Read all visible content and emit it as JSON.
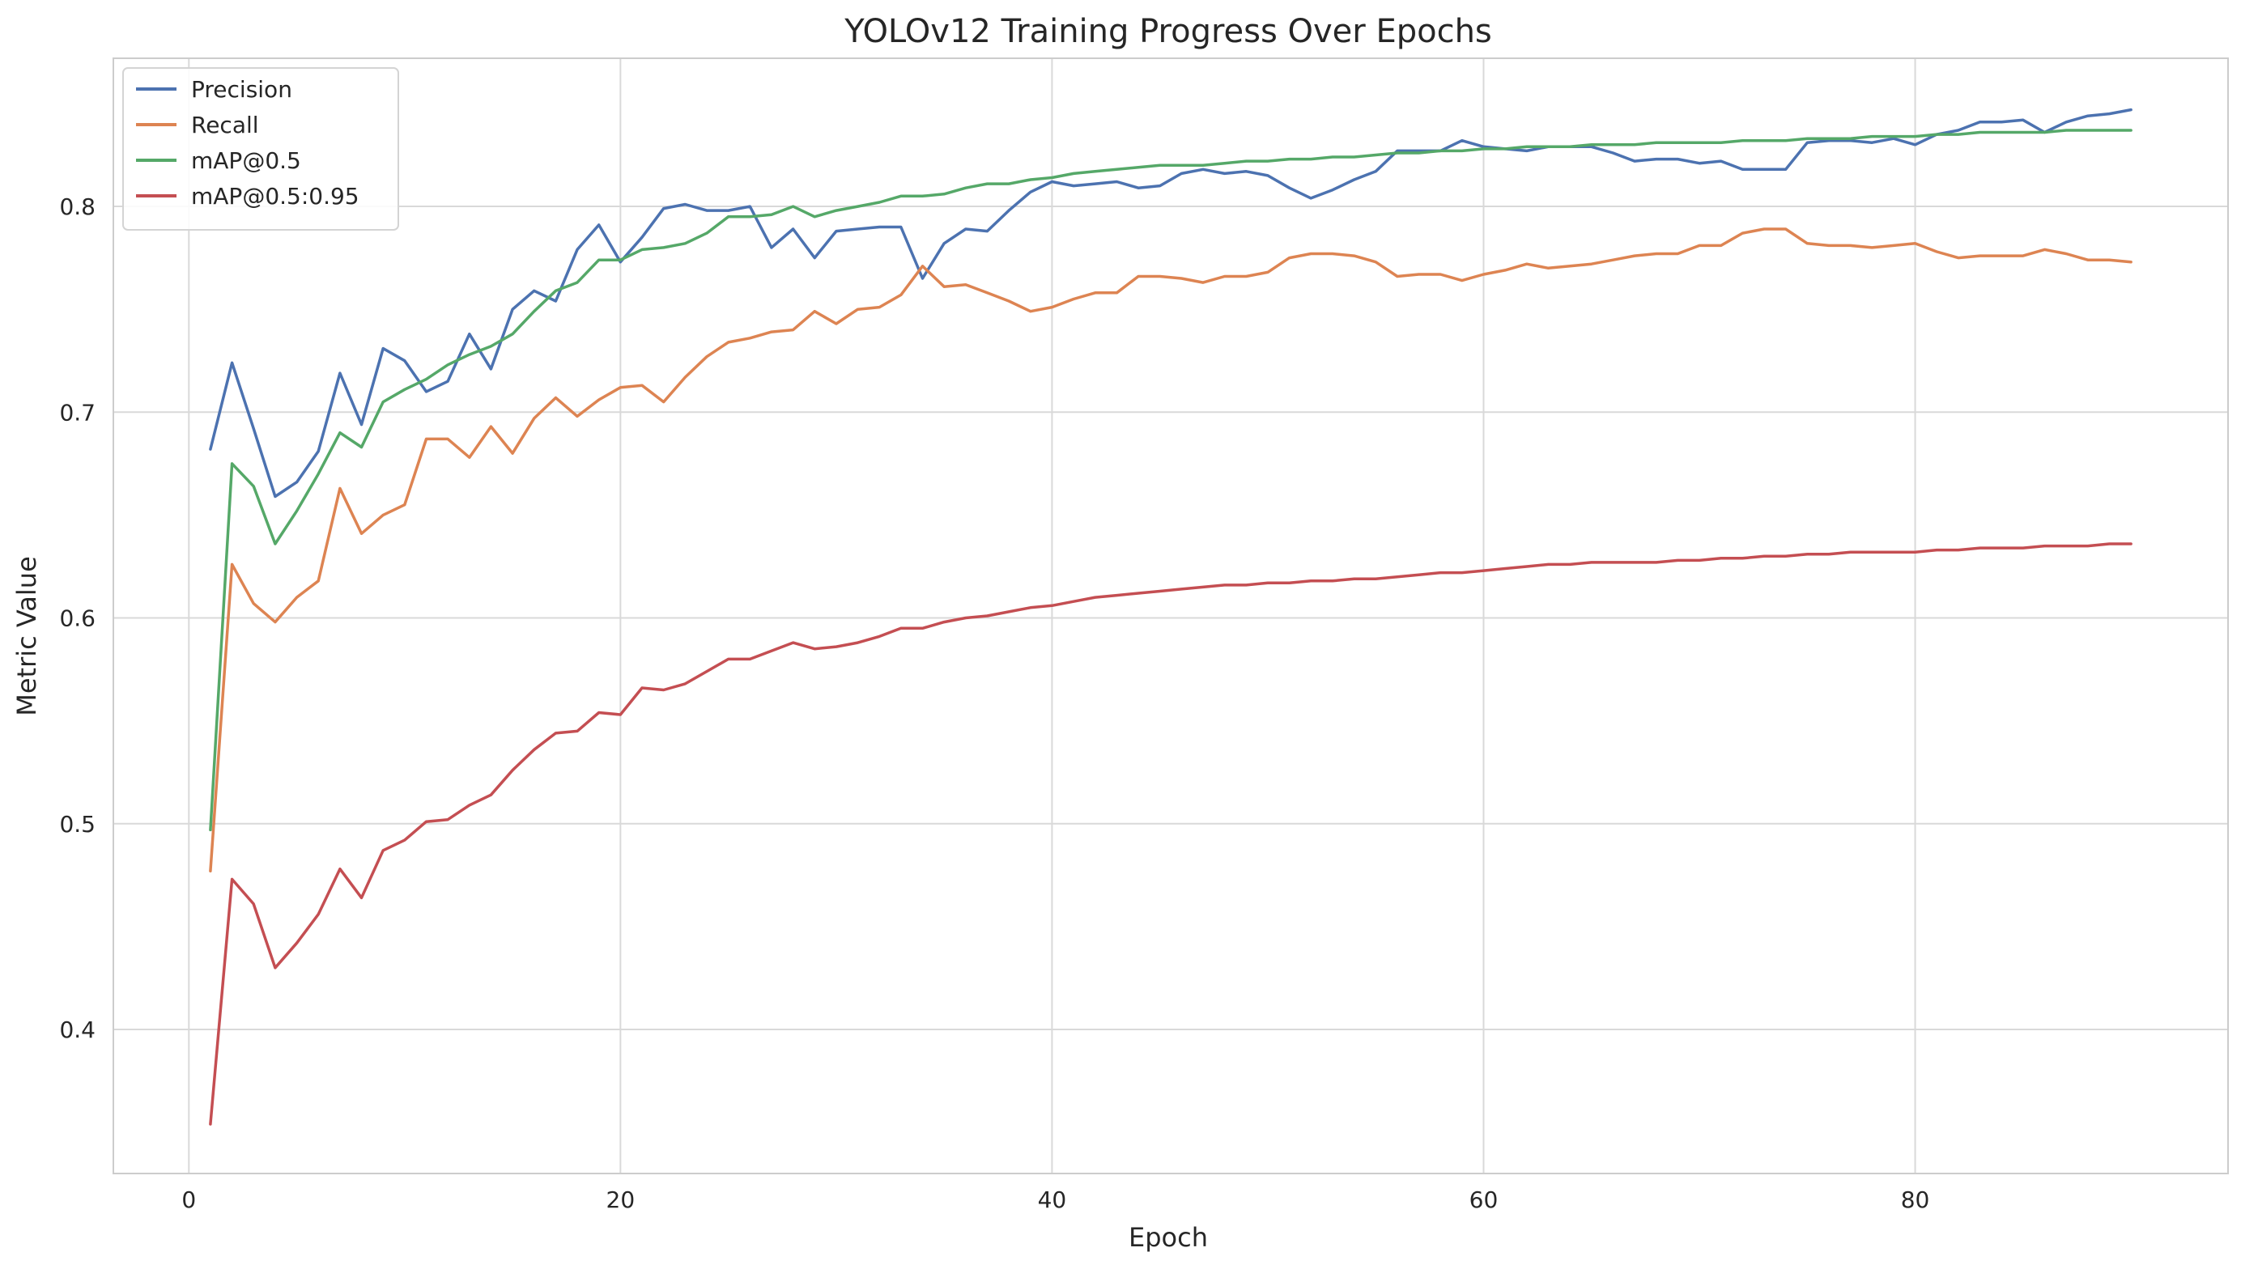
{
  "chart_data": {
    "type": "line",
    "title": "YOLOv12 Training Progress Over Epochs",
    "xlabel": "Epoch",
    "ylabel": "Metric Value",
    "xlim": [
      -3.5,
      94.5
    ],
    "ylim": [
      0.33,
      0.872
    ],
    "xticks": [
      0,
      20,
      40,
      60,
      80
    ],
    "yticks": [
      0.4,
      0.5,
      0.6,
      0.7,
      0.8
    ],
    "grid": true,
    "legend_position": "top-left",
    "x": [
      1,
      2,
      3,
      4,
      5,
      6,
      7,
      8,
      9,
      10,
      11,
      12,
      13,
      14,
      15,
      16,
      17,
      18,
      19,
      20,
      21,
      22,
      23,
      24,
      25,
      26,
      27,
      28,
      29,
      30,
      31,
      32,
      33,
      34,
      35,
      36,
      37,
      38,
      39,
      40,
      41,
      42,
      43,
      44,
      45,
      46,
      47,
      48,
      49,
      50,
      51,
      52,
      53,
      54,
      55,
      56,
      57,
      58,
      59,
      60,
      61,
      62,
      63,
      64,
      65,
      66,
      67,
      68,
      69,
      70,
      71,
      72,
      73,
      74,
      75,
      76,
      77,
      78,
      79,
      80,
      81,
      82,
      83,
      84,
      85,
      86,
      87,
      88,
      89,
      90
    ],
    "series": [
      {
        "name": "Precision",
        "color": "#4c72b0",
        "values": [
          0.682,
          0.724,
          0.692,
          0.659,
          0.666,
          0.681,
          0.719,
          0.694,
          0.731,
          0.725,
          0.71,
          0.715,
          0.738,
          0.721,
          0.75,
          0.759,
          0.754,
          0.779,
          0.791,
          0.773,
          0.785,
          0.799,
          0.801,
          0.798,
          0.798,
          0.8,
          0.78,
          0.789,
          0.775,
          0.788,
          0.789,
          0.79,
          0.79,
          0.765,
          0.782,
          0.789,
          0.788,
          0.798,
          0.807,
          0.812,
          0.81,
          0.811,
          0.812,
          0.809,
          0.81,
          0.816,
          0.818,
          0.816,
          0.817,
          0.815,
          0.809,
          0.804,
          0.808,
          0.813,
          0.817,
          0.827,
          0.827,
          0.827,
          0.832,
          0.829,
          0.828,
          0.827,
          0.829,
          0.829,
          0.829,
          0.826,
          0.822,
          0.823,
          0.823,
          0.821,
          0.822,
          0.818,
          0.818,
          0.818,
          0.831,
          0.832,
          0.832,
          0.831,
          0.833,
          0.83,
          0.835,
          0.837,
          0.841,
          0.841,
          0.842,
          0.836,
          0.841,
          0.844,
          0.845,
          0.847
        ]
      },
      {
        "name": "Recall",
        "color": "#dd8452",
        "values": [
          0.477,
          0.626,
          0.607,
          0.598,
          0.61,
          0.618,
          0.663,
          0.641,
          0.65,
          0.655,
          0.687,
          0.687,
          0.678,
          0.693,
          0.68,
          0.697,
          0.707,
          0.698,
          0.706,
          0.712,
          0.713,
          0.705,
          0.717,
          0.727,
          0.734,
          0.736,
          0.739,
          0.74,
          0.749,
          0.743,
          0.75,
          0.751,
          0.757,
          0.771,
          0.761,
          0.762,
          0.758,
          0.754,
          0.749,
          0.751,
          0.755,
          0.758,
          0.758,
          0.766,
          0.766,
          0.765,
          0.763,
          0.766,
          0.766,
          0.768,
          0.775,
          0.777,
          0.777,
          0.776,
          0.773,
          0.766,
          0.767,
          0.767,
          0.764,
          0.767,
          0.769,
          0.772,
          0.77,
          0.771,
          0.772,
          0.774,
          0.776,
          0.777,
          0.777,
          0.781,
          0.781,
          0.787,
          0.789,
          0.789,
          0.782,
          0.781,
          0.781,
          0.78,
          0.781,
          0.782,
          0.778,
          0.775,
          0.776,
          0.776,
          0.776,
          0.779,
          0.777,
          0.774,
          0.774,
          0.773
        ]
      },
      {
        "name": "mAP@0.5",
        "color": "#55a868",
        "values": [
          0.497,
          0.675,
          0.664,
          0.636,
          0.652,
          0.67,
          0.69,
          0.683,
          0.705,
          0.711,
          0.716,
          0.723,
          0.728,
          0.732,
          0.738,
          0.749,
          0.759,
          0.763,
          0.774,
          0.774,
          0.779,
          0.78,
          0.782,
          0.787,
          0.795,
          0.795,
          0.796,
          0.8,
          0.795,
          0.798,
          0.8,
          0.802,
          0.805,
          0.805,
          0.806,
          0.809,
          0.811,
          0.811,
          0.813,
          0.814,
          0.816,
          0.817,
          0.818,
          0.819,
          0.82,
          0.82,
          0.82,
          0.821,
          0.822,
          0.822,
          0.823,
          0.823,
          0.824,
          0.824,
          0.825,
          0.826,
          0.826,
          0.827,
          0.827,
          0.828,
          0.828,
          0.829,
          0.829,
          0.829,
          0.83,
          0.83,
          0.83,
          0.831,
          0.831,
          0.831,
          0.831,
          0.832,
          0.832,
          0.832,
          0.833,
          0.833,
          0.833,
          0.834,
          0.834,
          0.834,
          0.835,
          0.835,
          0.836,
          0.836,
          0.836,
          0.836,
          0.837,
          0.837,
          0.837,
          0.837
        ]
      },
      {
        "name": "mAP@0.5:0.95",
        "color": "#c44e52",
        "values": [
          0.354,
          0.473,
          0.461,
          0.43,
          0.442,
          0.456,
          0.478,
          0.464,
          0.487,
          0.492,
          0.501,
          0.502,
          0.509,
          0.514,
          0.526,
          0.536,
          0.544,
          0.545,
          0.554,
          0.553,
          0.566,
          0.565,
          0.568,
          0.574,
          0.58,
          0.58,
          0.584,
          0.588,
          0.585,
          0.586,
          0.588,
          0.591,
          0.595,
          0.595,
          0.598,
          0.6,
          0.601,
          0.603,
          0.605,
          0.606,
          0.608,
          0.61,
          0.611,
          0.612,
          0.613,
          0.614,
          0.615,
          0.616,
          0.616,
          0.617,
          0.617,
          0.618,
          0.618,
          0.619,
          0.619,
          0.62,
          0.621,
          0.622,
          0.622,
          0.623,
          0.624,
          0.625,
          0.626,
          0.626,
          0.627,
          0.627,
          0.627,
          0.627,
          0.628,
          0.628,
          0.629,
          0.629,
          0.63,
          0.63,
          0.631,
          0.631,
          0.632,
          0.632,
          0.632,
          0.632,
          0.633,
          0.633,
          0.634,
          0.634,
          0.634,
          0.635,
          0.635,
          0.635,
          0.636,
          0.636
        ]
      }
    ]
  }
}
